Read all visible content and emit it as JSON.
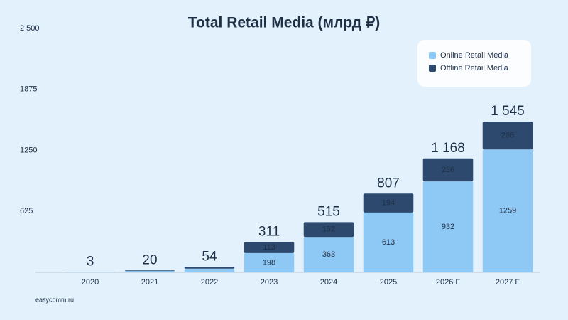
{
  "chart_data": {
    "type": "stacked-bar",
    "title": "Total Retail Media (млрд ₽)",
    "categories": [
      "2020",
      "2021",
      "2022",
      "2023",
      "2024",
      "2025",
      "2026 F",
      "2027 F"
    ],
    "series": [
      {
        "name": "Online Retail Media",
        "color": "#8ec8f5",
        "values": [
          2,
          14,
          38,
          198,
          363,
          613,
          932,
          1259
        ],
        "value_labels": [
          null,
          null,
          null,
          "198",
          "363",
          "613",
          "932",
          "1259"
        ]
      },
      {
        "name": "Offline Retail Media",
        "color": "#2d4a6e",
        "values": [
          1,
          6,
          16,
          113,
          152,
          194,
          236,
          286
        ],
        "value_labels": [
          null,
          null,
          null,
          "113",
          "152",
          "194",
          "236",
          "286"
        ]
      }
    ],
    "totals": [
      3,
      20,
      54,
      311,
      515,
      807,
      1168,
      1545
    ],
    "total_labels": [
      "3",
      "20",
      "54",
      "311",
      "515",
      "807",
      "1 168",
      "1 545"
    ],
    "ylim": [
      0,
      2500
    ],
    "yticks": [
      625,
      1250,
      1875,
      {
        "value": 2500,
        "label": "2 500"
      }
    ],
    "grid": false,
    "legend": "top-right",
    "source": "easycomm.ru"
  }
}
